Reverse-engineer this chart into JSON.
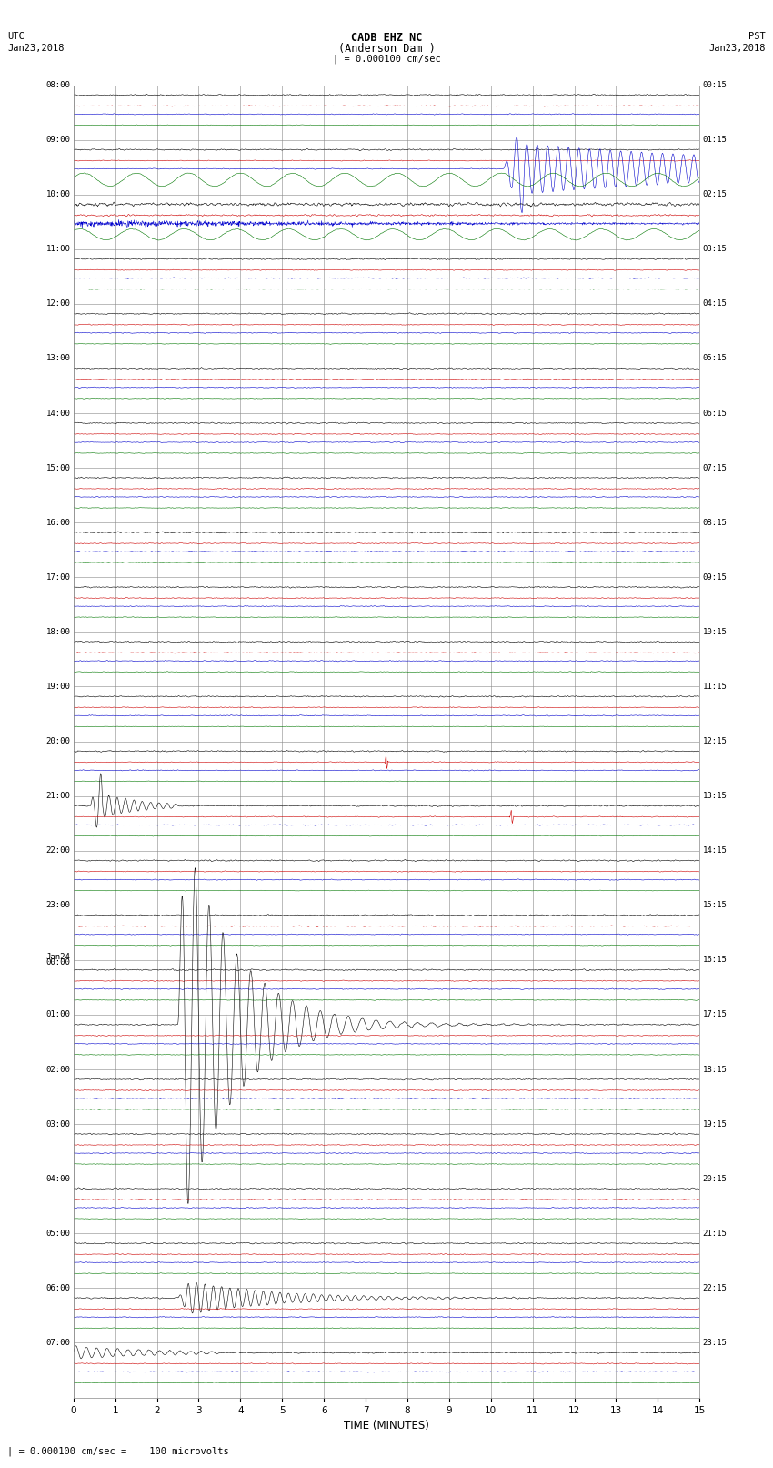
{
  "title_line1": "CADB EHZ NC",
  "title_line2": "(Anderson Dam )",
  "title_scale": "| = 0.000100 cm/sec",
  "left_label_top": "UTC",
  "left_label_date": "Jan23,2018",
  "right_label_top": "PST",
  "right_label_date": "Jan23,2018",
  "bottom_label": "TIME (MINUTES)",
  "scale_label": "| = 0.000100 cm/sec =    100 microvolts",
  "bg_color": "#ffffff",
  "grid_color": "#aaaaaa",
  "trace_colors": [
    "#000000",
    "#cc0000",
    "#0000cc",
    "#007700"
  ],
  "utc_times": [
    "08:00",
    "09:00",
    "10:00",
    "11:00",
    "12:00",
    "13:00",
    "14:00",
    "15:00",
    "16:00",
    "17:00",
    "18:00",
    "19:00",
    "20:00",
    "21:00",
    "22:00",
    "23:00",
    "Jan24\n00:00",
    "01:00",
    "02:00",
    "03:00",
    "04:00",
    "05:00",
    "06:00",
    "07:00"
  ],
  "pst_times": [
    "00:15",
    "01:15",
    "02:15",
    "03:15",
    "04:15",
    "05:15",
    "06:15",
    "07:15",
    "08:15",
    "09:15",
    "10:15",
    "11:15",
    "12:15",
    "13:15",
    "14:15",
    "15:15",
    "16:15",
    "17:15",
    "18:15",
    "19:15",
    "20:15",
    "21:15",
    "22:15",
    "23:15"
  ],
  "n_rows": 24,
  "minutes_per_row": 15,
  "x_ticks": [
    0,
    1,
    2,
    3,
    4,
    5,
    6,
    7,
    8,
    9,
    10,
    11,
    12,
    13,
    14,
    15
  ],
  "seed": 42
}
